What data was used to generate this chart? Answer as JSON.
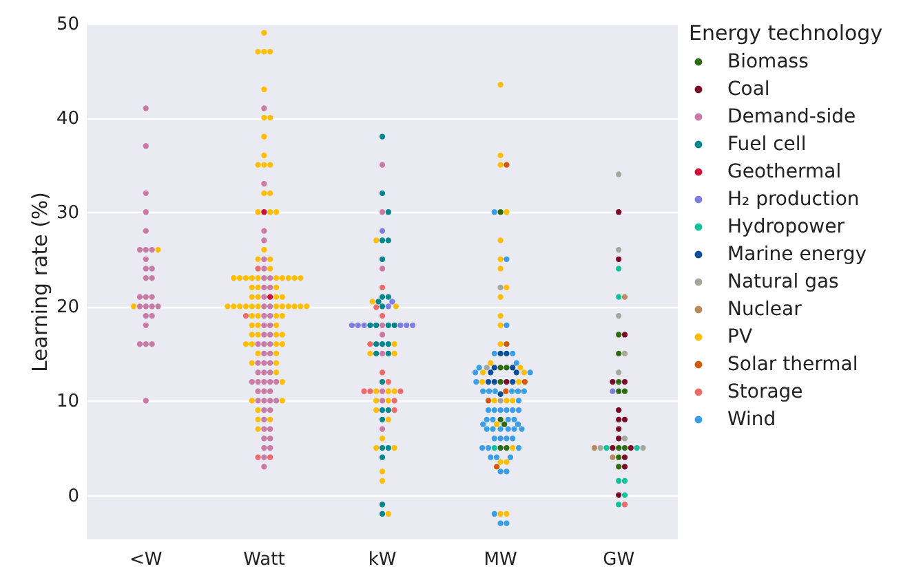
{
  "chart_data": {
    "type": "scatter",
    "ylabel": "Learning rate (%)",
    "legend_title": "Energy technology",
    "categories": [
      "<W",
      "Watt",
      "kW",
      "MW",
      "GW"
    ],
    "ylim": [
      -4.7,
      50
    ],
    "yticks": [
      0,
      10,
      20,
      30,
      40,
      50
    ],
    "grid": "y",
    "legend": "right",
    "marker": "circle",
    "series": [
      {
        "name": "Biomass",
        "color": "#2f6b12",
        "x": [
          "MW",
          "MW",
          "MW",
          "MW",
          "MW",
          "MW",
          "MW",
          "MW",
          "GW",
          "GW",
          "GW",
          "GW",
          "GW",
          "GW",
          "GW",
          "GW",
          "GW"
        ],
        "values": [
          30,
          13.5,
          13.5,
          12,
          8,
          7.5,
          5,
          5,
          17,
          15,
          12,
          11,
          11,
          5,
          5,
          4,
          3
        ]
      },
      {
        "name": "Coal",
        "color": "#7a0a28",
        "x": [
          "MW",
          "GW",
          "GW",
          "GW",
          "GW",
          "GW",
          "GW",
          "GW",
          "GW",
          "GW",
          "GW",
          "GW",
          "GW",
          "GW",
          "GW",
          "GW"
        ],
        "values": [
          12,
          30,
          25,
          17,
          12,
          12,
          9,
          8,
          8,
          7,
          6,
          5,
          5,
          4,
          3,
          0
        ]
      },
      {
        "name": "Demand-side",
        "color": "#c97ba6",
        "x": [
          "<W",
          "<W",
          "<W",
          "<W",
          "<W",
          "<W",
          "<W",
          "<W",
          "<W",
          "<W",
          "<W",
          "<W",
          "<W",
          "<W",
          "<W",
          "<W",
          "<W",
          "<W",
          "<W",
          "<W",
          "<W",
          "<W",
          "<W",
          "<W",
          "<W",
          "<W",
          "<W",
          "Watt",
          "Watt",
          "Watt",
          "Watt",
          "Watt",
          "Watt",
          "Watt",
          "Watt",
          "Watt",
          "Watt",
          "Watt",
          "Watt",
          "Watt",
          "Watt",
          "Watt",
          "Watt",
          "Watt",
          "Watt",
          "Watt",
          "Watt",
          "Watt",
          "Watt",
          "Watt",
          "Watt",
          "Watt",
          "Watt",
          "Watt",
          "Watt",
          "Watt",
          "Watt",
          "Watt",
          "Watt",
          "Watt",
          "Watt",
          "Watt",
          "Watt",
          "Watt",
          "Watt",
          "Watt",
          "Watt",
          "Watt",
          "Watt",
          "Watt",
          "Watt",
          "Watt",
          "Watt",
          "Watt",
          "Watt",
          "Watt",
          "Watt",
          "Watt",
          "Watt",
          "Watt",
          "kW",
          "kW",
          "kW",
          "kW",
          "kW",
          "kW",
          "kW",
          "kW",
          "kW"
        ],
        "values": [
          41,
          37,
          32,
          30,
          28,
          26,
          26,
          26,
          25,
          24,
          24,
          23,
          23,
          21,
          21,
          21,
          20,
          20,
          20,
          20,
          19,
          19,
          18,
          16,
          16,
          16,
          10,
          41,
          33,
          28,
          27,
          25,
          24,
          23,
          23,
          22,
          22,
          21,
          20,
          20,
          19,
          19,
          18,
          18,
          17,
          17,
          16,
          16,
          16,
          15,
          15,
          14,
          14,
          14,
          13,
          13,
          13,
          12,
          12,
          12,
          12,
          12,
          11,
          11,
          11,
          10,
          10,
          10,
          10,
          9,
          9,
          8,
          7,
          7,
          6,
          6,
          5,
          5,
          4,
          3,
          35,
          30,
          24,
          18,
          17,
          15,
          11,
          10,
          7
        ]
      },
      {
        "name": "Fuel cell",
        "color": "#00868b",
        "x": [
          "kW",
          "kW",
          "kW",
          "kW",
          "kW",
          "kW",
          "kW",
          "kW",
          "kW",
          "kW",
          "kW",
          "kW",
          "kW",
          "kW",
          "kW",
          "kW",
          "kW",
          "kW",
          "kW",
          "kW",
          "kW",
          "kW",
          "kW",
          "kW",
          "kW",
          "kW",
          "kW",
          "kW"
        ],
        "values": [
          38,
          32,
          30,
          27,
          27,
          25,
          21,
          21,
          20.5,
          20,
          18,
          18,
          18,
          18,
          16,
          16,
          16,
          15,
          15,
          12,
          9,
          9,
          8,
          5,
          5,
          4,
          -1,
          -2
        ]
      },
      {
        "name": "Geothermal",
        "color": "#d0103a",
        "x": [
          "Watt",
          "Watt"
        ],
        "values": [
          30,
          21
        ]
      },
      {
        "name": "H₂ production",
        "color": "#7f7fe0",
        "x": [
          "kW",
          "kW",
          "kW",
          "kW",
          "kW",
          "kW",
          "kW",
          "kW",
          "kW",
          "GW"
        ],
        "values": [
          28,
          20.5,
          20,
          18,
          18,
          18,
          18,
          18,
          18,
          11
        ]
      },
      {
        "name": "Hydropower",
        "color": "#10c29a",
        "x": [
          "MW",
          "GW",
          "GW",
          "GW",
          "GW",
          "GW",
          "GW",
          "GW",
          "GW"
        ],
        "values": [
          5,
          24,
          21,
          5,
          5,
          1.5,
          1.5,
          0,
          -1
        ]
      },
      {
        "name": "Marine energy",
        "color": "#0b4f9a",
        "x": [
          "MW",
          "MW",
          "MW",
          "MW",
          "MW",
          "MW",
          "MW",
          "MW",
          "MW",
          "MW"
        ],
        "values": [
          15,
          15,
          13.5,
          13.5,
          13,
          13,
          12,
          12,
          12,
          10.7
        ]
      },
      {
        "name": "Natural gas",
        "color": "#a4a79b",
        "x": [
          "MW",
          "MW",
          "MW",
          "GW",
          "GW",
          "GW",
          "GW",
          "GW",
          "GW",
          "GW",
          "GW"
        ],
        "values": [
          22,
          13.5,
          10,
          34,
          26,
          19,
          15,
          13,
          6,
          5,
          5
        ]
      },
      {
        "name": "Nuclear",
        "color": "#b98a5e",
        "x": [
          "GW",
          "GW",
          "GW"
        ],
        "values": [
          21,
          5,
          4
        ]
      },
      {
        "name": "PV",
        "color": "#ffbf00",
        "x": [
          "<W",
          "<W",
          "Watt",
          "Watt",
          "Watt",
          "Watt",
          "Watt",
          "Watt",
          "Watt",
          "Watt",
          "Watt",
          "Watt",
          "Watt",
          "Watt",
          "Watt",
          "Watt",
          "Watt",
          "Watt",
          "Watt",
          "Watt",
          "Watt",
          "Watt",
          "Watt",
          "Watt",
          "Watt",
          "Watt",
          "Watt",
          "Watt",
          "Watt",
          "Watt",
          "Watt",
          "Watt",
          "Watt",
          "Watt",
          "Watt",
          "Watt",
          "Watt",
          "Watt",
          "Watt",
          "Watt",
          "Watt",
          "Watt",
          "Watt",
          "Watt",
          "Watt",
          "Watt",
          "Watt",
          "Watt",
          "Watt",
          "Watt",
          "Watt",
          "Watt",
          "Watt",
          "Watt",
          "Watt",
          "Watt",
          "Watt",
          "Watt",
          "Watt",
          "Watt",
          "Watt",
          "Watt",
          "Watt",
          "Watt",
          "Watt",
          "Watt",
          "Watt",
          "Watt",
          "Watt",
          "Watt",
          "Watt",
          "Watt",
          "Watt",
          "Watt",
          "Watt",
          "Watt",
          "Watt",
          "Watt",
          "Watt",
          "kW",
          "kW",
          "kW",
          "kW",
          "kW",
          "kW",
          "kW",
          "kW",
          "kW",
          "kW",
          "kW",
          "kW",
          "kW",
          "kW",
          "kW",
          "kW",
          "kW",
          "kW",
          "kW",
          "MW",
          "MW",
          "MW",
          "MW",
          "MW",
          "MW",
          "MW",
          "MW",
          "MW",
          "MW",
          "MW",
          "MW",
          "MW",
          "MW",
          "MW",
          "MW",
          "MW",
          "MW",
          "MW",
          "MW",
          "MW",
          "MW",
          "MW",
          "MW",
          "MW",
          "MW",
          "MW"
        ],
        "values": [
          26,
          20,
          49,
          47,
          47,
          47,
          43,
          40,
          40,
          38,
          36,
          35,
          35,
          35,
          32,
          32,
          30,
          30,
          30,
          26,
          25,
          25,
          24,
          23,
          23,
          23,
          23,
          23,
          23,
          23,
          23,
          23,
          23,
          22,
          22,
          22,
          21,
          21,
          21,
          21,
          20,
          20,
          20,
          20,
          20,
          20,
          20,
          20,
          20,
          20,
          20,
          20,
          19,
          19,
          19,
          19,
          18,
          18,
          18,
          17,
          17,
          17,
          17,
          16,
          16,
          16,
          16,
          15,
          15,
          14,
          14,
          13,
          12,
          10,
          10,
          9,
          8,
          8,
          7,
          27,
          20.5,
          20,
          16,
          15,
          15,
          11,
          11,
          11,
          10,
          10,
          9,
          8,
          6,
          5,
          5,
          2.5,
          1.5,
          -2,
          43.5,
          36,
          35,
          30,
          27,
          25,
          24,
          22,
          21,
          19,
          18,
          16,
          14,
          13.5,
          13,
          13,
          12,
          12,
          10,
          10,
          10,
          7.5,
          5,
          3.5,
          3.5,
          -2,
          -2
        ]
      },
      {
        "name": "Solar thermal",
        "color": "#d25a0a",
        "x": [
          "MW",
          "MW",
          "MW",
          "MW",
          "MW",
          "MW"
        ],
        "values": [
          35,
          16,
          12,
          11,
          10,
          3
        ]
      },
      {
        "name": "Storage",
        "color": "#ee6b6b",
        "x": [
          "Watt",
          "Watt",
          "Watt",
          "Watt",
          "kW",
          "kW",
          "kW",
          "kW",
          "kW",
          "kW",
          "kW",
          "kW",
          "kW",
          "kW",
          "kW",
          "GW"
        ],
        "values": [
          24,
          19,
          4,
          4,
          22,
          19.9,
          19,
          16,
          13,
          12,
          11,
          11,
          11,
          10,
          9,
          -1
        ]
      },
      {
        "name": "Wind",
        "color": "#3c9fe6",
        "x": [
          "MW",
          "MW",
          "MW",
          "MW",
          "MW",
          "MW",
          "MW",
          "MW",
          "MW",
          "MW",
          "MW",
          "MW",
          "MW",
          "MW",
          "MW",
          "MW",
          "MW",
          "MW",
          "MW",
          "MW",
          "MW",
          "MW",
          "MW",
          "MW",
          "MW",
          "MW",
          "MW",
          "MW",
          "MW",
          "MW",
          "MW",
          "MW",
          "MW",
          "MW",
          "MW",
          "MW",
          "MW",
          "MW",
          "MW",
          "MW",
          "MW",
          "MW",
          "MW",
          "MW",
          "MW",
          "MW",
          "MW",
          "MW",
          "MW",
          "MW"
        ],
        "values": [
          30,
          25,
          18,
          15,
          15,
          14,
          13.5,
          13,
          13,
          11,
          11,
          11,
          11,
          11,
          11,
          9,
          9,
          9,
          9,
          9,
          9,
          8,
          8,
          8,
          8,
          7.5,
          7.5,
          7,
          7,
          7,
          7,
          7,
          7,
          6,
          6,
          6,
          6,
          5,
          5,
          5,
          4,
          4,
          4,
          2.5,
          2.5,
          -2,
          -3,
          -3,
          12,
          10
        ]
      }
    ]
  }
}
